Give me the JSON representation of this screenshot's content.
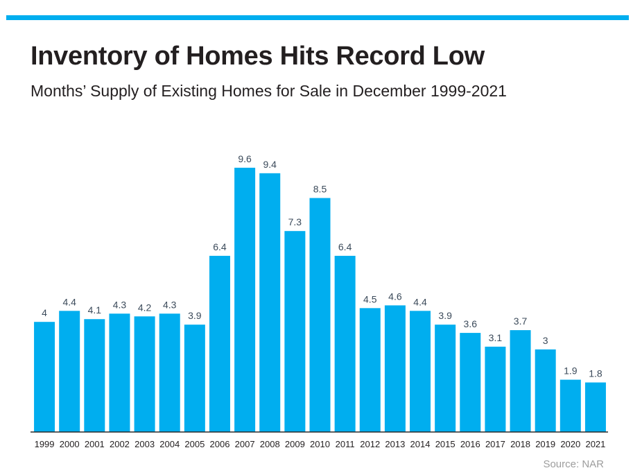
{
  "header": {
    "title": "Inventory of Homes Hits Record Low",
    "subtitle": "Months’ Supply of Existing Homes for Sale in December 1999-2021"
  },
  "footer": {
    "source": "Source: NAR"
  },
  "colors": {
    "accent": "#00aeef",
    "bar": "#00aeef",
    "text": "#231f20",
    "label": "#3b4a5a",
    "source": "#9d9d9d"
  },
  "chart_data": {
    "type": "bar",
    "title": "Inventory of Homes Hits Record Low",
    "subtitle": "Months’ Supply of Existing Homes for Sale in December 1999-2021",
    "xlabel": "",
    "ylabel": "",
    "categories": [
      "1999",
      "2000",
      "2001",
      "2002",
      "2003",
      "2004",
      "2005",
      "2006",
      "2007",
      "2008",
      "2009",
      "2010",
      "2011",
      "2012",
      "2013",
      "2014",
      "2015",
      "2016",
      "2017",
      "2018",
      "2019",
      "2020",
      "2021"
    ],
    "values": [
      4,
      4.4,
      4.1,
      4.3,
      4.2,
      4.3,
      3.9,
      6.4,
      9.6,
      9.4,
      7.3,
      8.5,
      6.4,
      4.5,
      4.6,
      4.4,
      3.9,
      3.6,
      3.1,
      3.7,
      3,
      1.9,
      1.8
    ],
    "data_labels": [
      "4",
      "4.4",
      "4.1",
      "4.3",
      "4.2",
      "4.3",
      "3.9",
      "6.4",
      "9.6",
      "9.4",
      "7.3",
      "8.5",
      "6.4",
      "4.5",
      "4.6",
      "4.4",
      "3.9",
      "3.6",
      "3.1",
      "3.7",
      "3",
      "1.9",
      "1.8"
    ],
    "ylim": [
      0,
      10
    ],
    "grid": false,
    "legend": "none",
    "source": "Source: NAR"
  }
}
